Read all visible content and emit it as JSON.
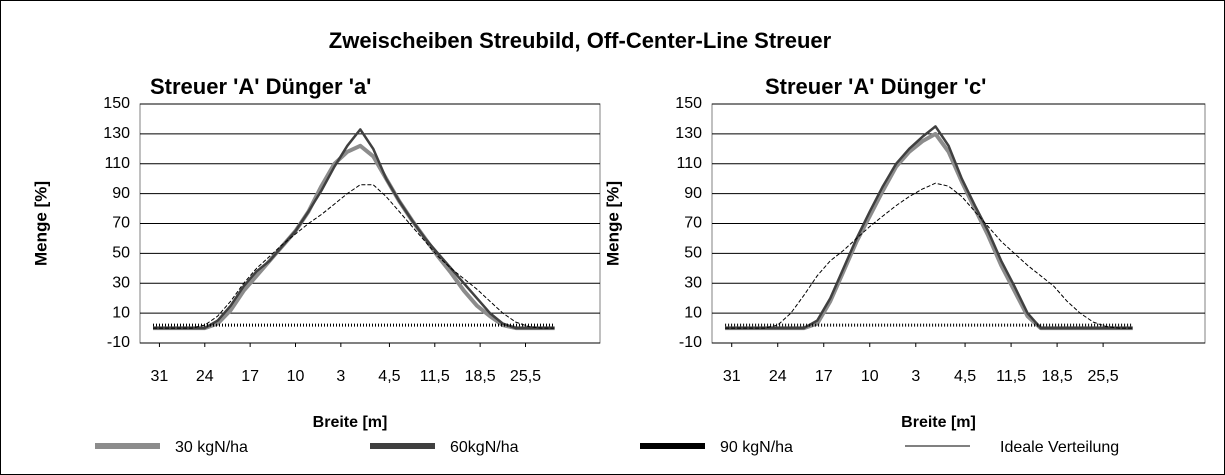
{
  "title": "Zweischeiben Streubild, Off-Center-Line Streuer",
  "chart_data": [
    {
      "type": "line",
      "title": "Streuer 'A' Dünger 'a'",
      "y_label": "Menge [%]",
      "x_label": "Breite [m]",
      "x": [
        -32,
        -30,
        -28,
        -26,
        -24,
        -22,
        -20,
        -18,
        -16,
        -14,
        -12,
        -10,
        -8,
        -6,
        -4,
        -2,
        0,
        2,
        4,
        6,
        8,
        10,
        12,
        14,
        16,
        18,
        20,
        22,
        24,
        26,
        28,
        30
      ],
      "xlim": [
        -34,
        37
      ],
      "xticks": [
        {
          "value": -31,
          "label": "31"
        },
        {
          "value": -24,
          "label": "24"
        },
        {
          "value": -17,
          "label": "17"
        },
        {
          "value": -10,
          "label": "10"
        },
        {
          "value": -3,
          "label": "3"
        },
        {
          "value": 4.5,
          "label": "4,5"
        },
        {
          "value": 11.5,
          "label": "11,5"
        },
        {
          "value": 18.5,
          "label": "18,5"
        },
        {
          "value": 25.5,
          "label": "25,5"
        }
      ],
      "ylim": [
        -10,
        150
      ],
      "yticks": [
        -10,
        10,
        30,
        50,
        70,
        90,
        110,
        130,
        150
      ],
      "grid": true,
      "series": [
        {
          "name": "30 kgN/ha",
          "color": "#8c8c8c",
          "values": [
            0,
            0,
            0,
            0,
            0,
            3,
            12,
            25,
            35,
            45,
            55,
            65,
            78,
            95,
            110,
            118,
            122,
            115,
            100,
            85,
            72,
            60,
            48,
            37,
            25,
            15,
            8,
            2,
            0,
            0,
            0,
            0
          ]
        },
        {
          "name": "60kgN/ha",
          "color": "#404040",
          "values": [
            0,
            0,
            0,
            0,
            0,
            5,
            15,
            28,
            38,
            45,
            55,
            65,
            78,
            92,
            108,
            122,
            133,
            120,
            100,
            85,
            72,
            60,
            50,
            40,
            30,
            20,
            10,
            3,
            0,
            0,
            0,
            0
          ]
        },
        {
          "name": "90 kgN/ha",
          "color": "#000000",
          "values": [
            2,
            2,
            2,
            2,
            2,
            2,
            2,
            2,
            2,
            2,
            2,
            2,
            2,
            2,
            2,
            2,
            2,
            2,
            2,
            2,
            2,
            2,
            2,
            2,
            2,
            2,
            2,
            2,
            2,
            2,
            2,
            2
          ]
        },
        {
          "name": "Ideale Verteilung",
          "color": "#000000",
          "values": [
            0,
            0,
            0,
            0,
            2,
            8,
            18,
            30,
            40,
            48,
            56,
            63,
            70,
            76,
            83,
            90,
            96,
            96,
            88,
            78,
            68,
            58,
            48,
            40,
            33,
            26,
            18,
            10,
            4,
            1,
            0,
            0
          ]
        }
      ]
    },
    {
      "type": "line",
      "title": "Streuer 'A' Dünger 'c'",
      "y_label": "Menge [%]",
      "x_label": "Breite [m]",
      "x": [
        -32,
        -30,
        -28,
        -26,
        -24,
        -22,
        -20,
        -18,
        -16,
        -14,
        -12,
        -10,
        -8,
        -6,
        -4,
        -2,
        0,
        2,
        4,
        6,
        8,
        10,
        12,
        14,
        16,
        18,
        20,
        22,
        24,
        26,
        28,
        30
      ],
      "xlim": [
        -34,
        41
      ],
      "xticks": [
        {
          "value": -31,
          "label": "31"
        },
        {
          "value": -24,
          "label": "24"
        },
        {
          "value": -17,
          "label": "17"
        },
        {
          "value": -10,
          "label": "10"
        },
        {
          "value": -3,
          "label": "3"
        },
        {
          "value": 4.5,
          "label": "4,5"
        },
        {
          "value": 11.5,
          "label": "11,5"
        },
        {
          "value": 18.5,
          "label": "18,5"
        },
        {
          "value": 25.5,
          "label": "25,5"
        }
      ],
      "ylim": [
        -10,
        150
      ],
      "yticks": [
        -10,
        10,
        30,
        50,
        70,
        90,
        110,
        130,
        150
      ],
      "grid": true,
      "series": [
        {
          "name": "30 kgN/ha",
          "color": "#8c8c8c",
          "values": [
            0,
            0,
            0,
            0,
            0,
            0,
            0,
            3,
            18,
            38,
            58,
            75,
            92,
            108,
            118,
            125,
            130,
            118,
            98,
            80,
            62,
            42,
            25,
            8,
            0,
            0,
            0,
            0,
            0,
            0,
            0,
            0
          ]
        },
        {
          "name": "60kgN/ha",
          "color": "#404040",
          "values": [
            0,
            0,
            0,
            0,
            0,
            0,
            0,
            5,
            20,
            40,
            60,
            78,
            95,
            110,
            120,
            128,
            135,
            122,
            100,
            82,
            65,
            45,
            28,
            10,
            0,
            0,
            0,
            0,
            0,
            0,
            0,
            0
          ]
        },
        {
          "name": "90 kgN/ha",
          "color": "#000000",
          "values": [
            2,
            2,
            2,
            2,
            2,
            2,
            2,
            2,
            2,
            2,
            2,
            2,
            2,
            2,
            2,
            2,
            2,
            2,
            2,
            2,
            2,
            2,
            2,
            2,
            2,
            2,
            2,
            2,
            2,
            2,
            2,
            2
          ]
        },
        {
          "name": "Ideale Verteilung",
          "color": "#000000",
          "values": [
            0,
            0,
            0,
            0,
            2,
            10,
            22,
            35,
            45,
            52,
            60,
            68,
            75,
            82,
            88,
            93,
            97,
            95,
            88,
            78,
            68,
            58,
            50,
            42,
            35,
            28,
            18,
            10,
            4,
            1,
            0,
            0
          ]
        }
      ]
    }
  ]
}
